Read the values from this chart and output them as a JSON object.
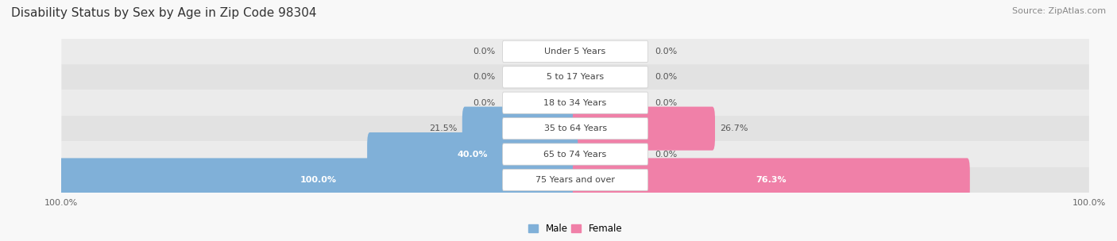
{
  "title": "Disability Status by Sex by Age in Zip Code 98304",
  "source": "Source: ZipAtlas.com",
  "categories": [
    "Under 5 Years",
    "5 to 17 Years",
    "18 to 34 Years",
    "35 to 64 Years",
    "65 to 74 Years",
    "75 Years and over"
  ],
  "male_values": [
    0.0,
    0.0,
    0.0,
    21.5,
    40.0,
    100.0
  ],
  "female_values": [
    0.0,
    0.0,
    0.0,
    26.7,
    0.0,
    76.3
  ],
  "male_color": "#80b0d8",
  "female_color": "#f080a8",
  "row_bg_colors": [
    "#ebebeb",
    "#e2e2e2"
  ],
  "label_fontsize": 8,
  "title_fontsize": 11,
  "source_fontsize": 8,
  "max_value": 100.0,
  "figsize": [
    14.06,
    3.04
  ],
  "dpi": 100
}
